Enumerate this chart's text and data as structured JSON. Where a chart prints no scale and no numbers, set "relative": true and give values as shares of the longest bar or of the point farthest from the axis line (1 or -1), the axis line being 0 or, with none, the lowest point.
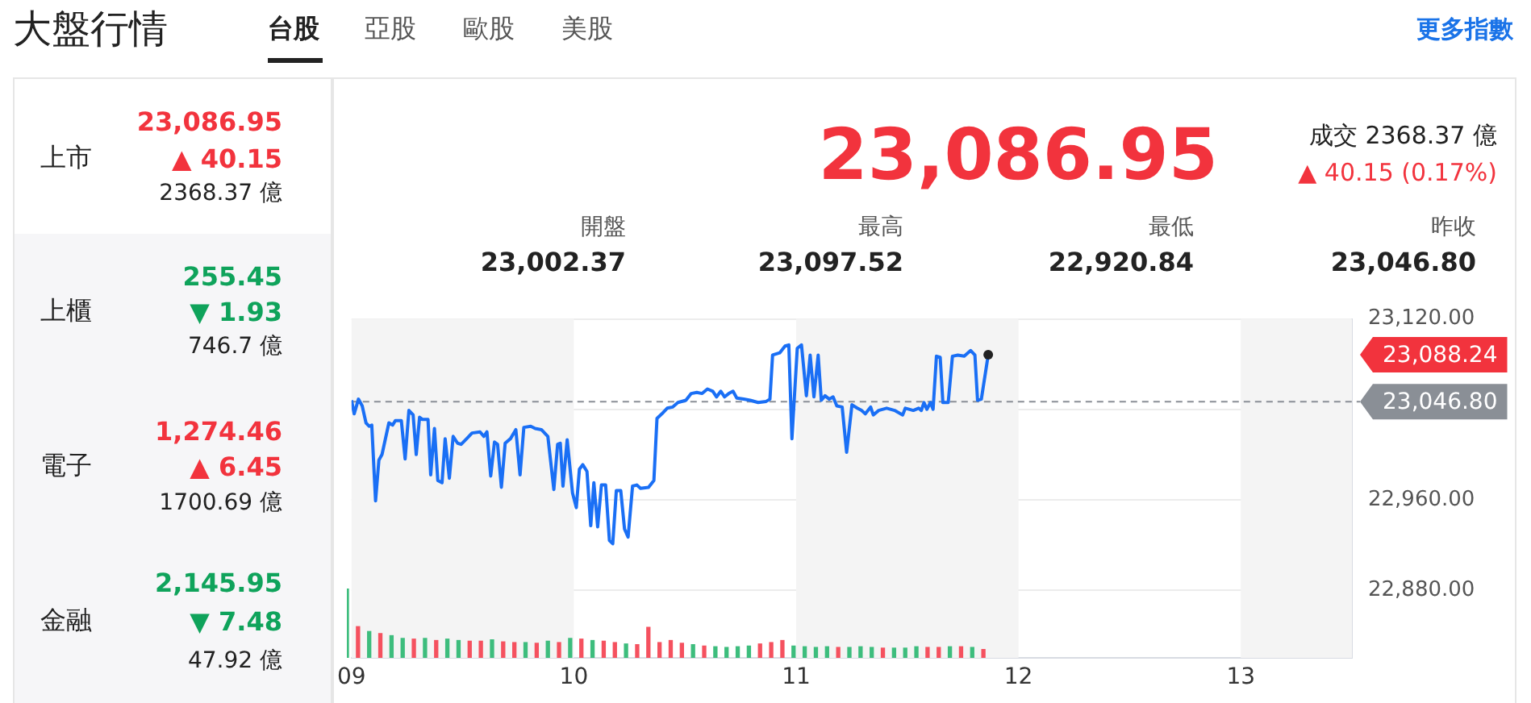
{
  "chart_data": [
    {
      "type": "line",
      "x": [
        9.0,
        9.012,
        9.031,
        9.048,
        9.065,
        9.079,
        9.091,
        9.108,
        9.123,
        9.137,
        9.168,
        9.185,
        9.197,
        9.224,
        9.241,
        9.258,
        9.277,
        9.291,
        9.306,
        9.32,
        9.344,
        9.356,
        9.373,
        9.388,
        9.407,
        9.421,
        9.44,
        9.457,
        9.477,
        9.493,
        9.518,
        9.542,
        9.578,
        9.595,
        9.609,
        9.626,
        9.643,
        9.657,
        9.674,
        9.691,
        9.715,
        9.739,
        9.758,
        9.775,
        9.806,
        9.826,
        9.854,
        9.883,
        9.91,
        9.927,
        9.939,
        9.951,
        9.97,
        9.994,
        10.011,
        10.025,
        10.04,
        10.059,
        10.076,
        10.09,
        10.107,
        10.124,
        10.143,
        10.16,
        10.175,
        10.191,
        10.211,
        10.228,
        10.244,
        10.264,
        10.283,
        10.3,
        10.336,
        10.36,
        10.374,
        10.396,
        10.42,
        10.444,
        10.468,
        10.504,
        10.528,
        10.553,
        10.577,
        10.601,
        10.625,
        10.642,
        10.661,
        10.678,
        10.697,
        10.716,
        10.733,
        10.764,
        10.793,
        10.829,
        10.865,
        10.882,
        10.894,
        10.926,
        10.95,
        10.967,
        10.981,
        11.005,
        11.024,
        11.046,
        11.063,
        11.08,
        11.099,
        11.113,
        11.13,
        11.149,
        11.166,
        11.183,
        11.207,
        11.227,
        11.251,
        11.275,
        11.294,
        11.311,
        11.335,
        11.347,
        11.371,
        11.407,
        11.443,
        11.479,
        11.491,
        11.527,
        11.551,
        11.563,
        11.575,
        11.588,
        11.604,
        11.616,
        11.631,
        11.648,
        11.66,
        11.684,
        11.703,
        11.727,
        11.756,
        11.785,
        11.804,
        11.816,
        11.833,
        11.864
      ],
      "series": [
        {
          "color": "#1a6ff5",
          "values": [
            23048,
            23036,
            23049,
            23043,
            23028,
            23025,
            23026,
            22959,
            22995,
            23000,
            23028,
            23026,
            23030,
            23030,
            22996,
            23039,
            23035,
            23000,
            23033,
            23031,
            23031,
            22982,
            23023,
            22977,
            22975,
            23014,
            22979,
            23016,
            23010,
            23009,
            23014,
            23019,
            23020,
            23016,
            23020,
            22981,
            23011,
            23009,
            22971,
            23010,
            23014,
            23022,
            22982,
            23024,
            23025,
            23023,
            23022,
            23016,
            22969,
            23009,
            23010,
            22972,
            23013,
            22966,
            22953,
            22987,
            22991,
            22985,
            22937,
            22975,
            22936,
            22973,
            22973,
            22924,
            22921,
            22968,
            22968,
            22934,
            22927,
            22972,
            22973,
            22970,
            22971,
            22977,
            23032,
            23036,
            23041,
            23042,
            23046,
            23048,
            23054,
            23055,
            23054,
            23058,
            23056,
            23051,
            23056,
            23051,
            23054,
            23056,
            23050,
            23049,
            23048,
            23046,
            23047,
            23049,
            23088,
            23090,
            23096,
            23097,
            23014,
            23094,
            23097,
            23052,
            23088,
            23051,
            23088,
            23048,
            23052,
            23049,
            23051,
            23043,
            23042,
            23002,
            23044,
            23041,
            23039,
            23036,
            23042,
            23035,
            23039,
            23041,
            23039,
            23035,
            23041,
            23039,
            23041,
            23039,
            23046,
            23040,
            23046,
            23040,
            23087,
            23086,
            23046,
            23046,
            23087,
            23088,
            23087,
            23092,
            23088,
            23048,
            23049,
            23088.24
          ]
        }
      ],
      "xlim": [
        9,
        13.5
      ],
      "xticks": [
        {
          "value": 9,
          "label": "09"
        },
        {
          "value": 10,
          "label": "10"
        },
        {
          "value": 11,
          "label": "11"
        },
        {
          "value": 12,
          "label": "12"
        },
        {
          "value": 13,
          "label": "13"
        }
      ],
      "ylim": [
        22820,
        23120
      ],
      "yticks": [
        {
          "value": 22880,
          "label": "22,880.00"
        },
        {
          "value": 22960,
          "label": "22,960.00"
        },
        {
          "value": 23040,
          "label": null
        },
        {
          "value": 23120,
          "label": "23,120.00"
        }
      ],
      "grid": "y",
      "legend": false,
      "bands": [
        {
          "axis": "x",
          "from": 9,
          "to": 10,
          "color": "#f4f4f4"
        },
        {
          "axis": "x",
          "from": 11,
          "to": 12,
          "color": "#f4f4f4"
        },
        {
          "axis": "x",
          "from": 13,
          "to": 13.5,
          "color": "#f4f4f4"
        }
      ],
      "ref_lines": [
        {
          "axis": "y",
          "value": 23046.8,
          "label": "23,046.80",
          "color": "#8a8f96",
          "line_style": "dashed"
        }
      ],
      "annotations": [
        "大盤行情",
        "台股",
        "亞股",
        "歐股",
        "美股",
        "更多指數",
        "上市",
        "23,086.95",
        "▲ 40.15",
        "2368.37 億",
        "上櫃",
        "255.45",
        "▼ 1.93",
        "746.7 億",
        "電子",
        "1,274.46",
        "▲ 6.45",
        "1700.69 億",
        "金融",
        "2,145.95",
        "▼ 7.48",
        "47.92 億",
        "23,086.95",
        "成交 2368.37 億",
        "▲ 40.15 (0.17%)",
        "開盤",
        "23,002.37",
        "最高",
        "23,097.52",
        "最低",
        "22,920.84",
        "昨收",
        "23,046.80",
        "23,088.24"
      ]
    },
    {
      "type": "bar",
      "relative": true,
      "tick_labels": false,
      "xlim": [
        9,
        13.5
      ],
      "x": [
        9.0,
        9.05,
        9.1,
        9.15,
        9.2,
        9.25,
        9.3,
        9.35,
        9.4,
        9.45,
        9.5,
        9.55,
        9.6,
        9.65,
        9.7,
        9.75,
        9.8,
        9.85,
        9.9,
        9.95,
        10.0,
        10.05,
        10.1,
        10.15,
        10.2,
        10.25,
        10.3,
        10.35,
        10.4,
        10.45,
        10.5,
        10.55,
        10.6,
        10.65,
        10.7,
        10.75,
        10.8,
        10.85,
        10.9,
        10.95,
        11.0,
        11.05,
        11.1,
        11.15,
        11.2,
        11.25,
        11.3,
        11.35,
        11.4,
        11.45,
        11.5,
        11.55,
        11.6,
        11.65,
        11.7,
        11.75,
        11.8,
        11.85
      ],
      "values": [
        1.0,
        0.45,
        0.38,
        0.35,
        0.32,
        0.28,
        0.27,
        0.28,
        0.25,
        0.27,
        0.25,
        0.24,
        0.24,
        0.26,
        0.23,
        0.22,
        0.22,
        0.21,
        0.24,
        0.22,
        0.28,
        0.27,
        0.25,
        0.24,
        0.22,
        0.2,
        0.19,
        0.44,
        0.22,
        0.25,
        0.21,
        0.19,
        0.17,
        0.16,
        0.15,
        0.16,
        0.17,
        0.2,
        0.22,
        0.25,
        0.17,
        0.16,
        0.15,
        0.16,
        0.15,
        0.15,
        0.16,
        0.15,
        0.14,
        0.14,
        0.14,
        0.16,
        0.15,
        0.15,
        0.16,
        0.16,
        0.15,
        0.12
      ],
      "colors": [
        "#3dbd7d",
        "#f5515f",
        "#3dbd7d",
        "#f5515f",
        "#3dbd7d",
        "#3dbd7d",
        "#f5515f",
        "#3dbd7d",
        "#f5515f",
        "#3dbd7d",
        "#3dbd7d",
        "#f5515f",
        "#f5515f",
        "#3dbd7d",
        "#f5515f",
        "#f5515f",
        "#3dbd7d",
        "#f5515f",
        "#3dbd7d",
        "#f5515f",
        "#3dbd7d",
        "#f5515f",
        "#3dbd7d",
        "#f5515f",
        "#f5515f",
        "#3dbd7d",
        "#f5515f",
        "#f5515f",
        "#f5515f",
        "#f5515f",
        "#f5515f",
        "#3dbd7d",
        "#f5515f",
        "#3dbd7d",
        "#3dbd7d",
        "#3dbd7d",
        "#3dbd7d",
        "#f5515f",
        "#f5515f",
        "#f5515f",
        "#3dbd7d",
        "#3dbd7d",
        "#3dbd7d",
        "#3dbd7d",
        "#f5515f",
        "#3dbd7d",
        "#3dbd7d",
        "#3dbd7d",
        "#f5515f",
        "#3dbd7d",
        "#3dbd7d",
        "#3dbd7d",
        "#f5515f",
        "#f5515f",
        "#3dbd7d",
        "#f5515f",
        "#3dbd7d",
        "#f5515f"
      ]
    }
  ]
}
